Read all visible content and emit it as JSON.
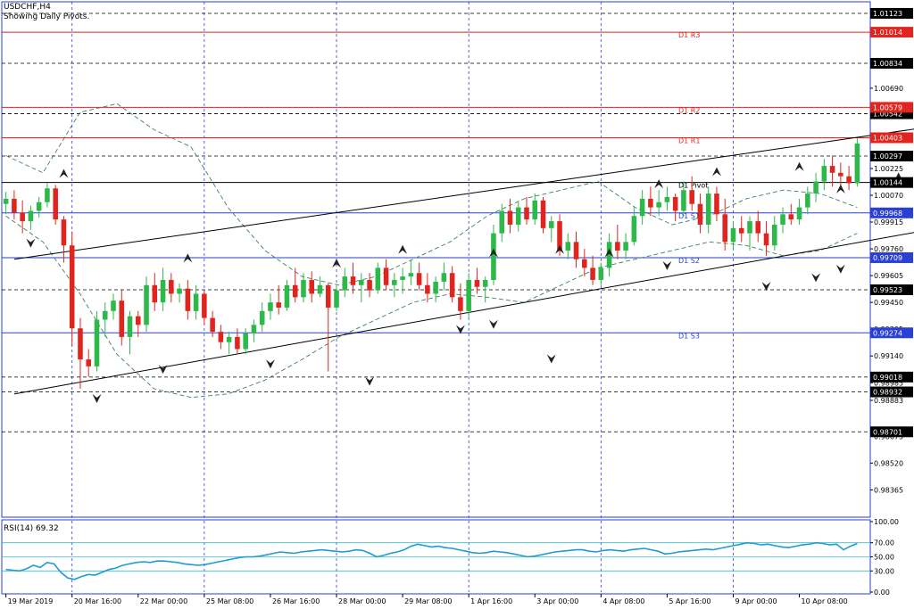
{
  "chart_header": {
    "symbol": "USDCHF,H4",
    "subtitle": "Showing Daily Pivots."
  },
  "colors": {
    "bull": "#2db84a",
    "bear": "#e0251f",
    "resistance": "#e0251f",
    "support": "#2a3fd6",
    "pivot": "#000000",
    "bands": "#3f7f5f",
    "grid": "#2a3fd6",
    "rsi": "#1e9bd7",
    "rsi_levels": "#3cc0c0"
  },
  "chart_data": {
    "type": "candlestick",
    "price_axis": {
      "range": [
        0.98207,
        1.0119
      ],
      "tick_labels": [
        "1.01123",
        "1.00834",
        "1.00690",
        "1.00542",
        "1.00394",
        "1.00297",
        "1.00225",
        "1.00070",
        "0.99915",
        "0.99760",
        "0.99605",
        "0.99450",
        "0.99295",
        "0.99140",
        "0.98985",
        "0.98883",
        "0.98675",
        "0.98520",
        "0.98365"
      ]
    },
    "time_axis": {
      "labels": [
        "19 Mar 2019",
        "20 Mar 16:00",
        "22 Mar 00:00",
        "25 Mar 08:00",
        "26 Mar 16:00",
        "28 Mar 00:00",
        "29 Mar 08:00",
        "1 Apr 16:00",
        "3 Apr 00:00",
        "4 Apr 08:00",
        "5 Apr 16:00",
        "9 Apr 00:00",
        "10 Apr 08:00"
      ]
    },
    "pivot_levels": [
      {
        "name": "D1 R3",
        "value": 1.01014,
        "label": "1.01014",
        "kind": "resistance"
      },
      {
        "name": "D1 R2",
        "value": 1.00579,
        "label": "1.00579",
        "kind": "resistance"
      },
      {
        "name": "D1 R1",
        "value": 1.00403,
        "label": "1.00403",
        "kind": "resistance"
      },
      {
        "name": "D1 Pivot",
        "value": 1.00144,
        "label": "1.00144",
        "kind": "pivot"
      },
      {
        "name": "D1 S1",
        "value": 0.99968,
        "label": "0.99968",
        "kind": "support"
      },
      {
        "name": "D1 S2",
        "value": 0.99709,
        "label": "0.99709",
        "kind": "support"
      },
      {
        "name": "D1 S3",
        "value": 0.99274,
        "label": "0.99274",
        "kind": "support"
      }
    ],
    "horizontal_levels": [
      {
        "value": 1.01123,
        "label": "1.01123"
      },
      {
        "value": 1.00834,
        "label": "1.00834"
      },
      {
        "value": 1.00542,
        "label": "1.00542"
      },
      {
        "value": 1.00297,
        "label": "1.00297"
      },
      {
        "value": 0.99523,
        "label": "0.99523"
      },
      {
        "value": 0.99018,
        "label": "0.99018"
      },
      {
        "value": 0.98932,
        "label": "0.98932"
      },
      {
        "value": 0.98701,
        "label": "0.98701"
      }
    ],
    "channel": {
      "upper": [
        [
          1,
          0.997
        ],
        [
          121,
          1.0053
        ]
      ],
      "lower": [
        [
          1,
          0.9892
        ],
        [
          121,
          0.9995
        ]
      ]
    },
    "candles": [
      [
        1.0002,
        1.0009,
        0.9996,
        1.0005
      ],
      [
        1.0005,
        1.001,
        0.9993,
        0.9997
      ],
      [
        0.9997,
        1.0004,
        0.9985,
        0.9992
      ],
      [
        0.9992,
        1.0001,
        0.9987,
        0.9998
      ],
      [
        0.9998,
        1.0006,
        0.9994,
        1.0003
      ],
      [
        1.0003,
        1.0014,
        1.0,
        1.0011
      ],
      [
        1.0011,
        1.0013,
        0.999,
        0.9993
      ],
      [
        0.9993,
        0.9995,
        0.9968,
        0.9978
      ],
      [
        0.9978,
        0.9986,
        0.992,
        0.993
      ],
      [
        0.993,
        0.9936,
        0.9895,
        0.9912
      ],
      [
        0.9912,
        0.9918,
        0.9902,
        0.9908
      ],
      [
        0.9908,
        0.994,
        0.9905,
        0.9935
      ],
      [
        0.9935,
        0.9945,
        0.9925,
        0.994
      ],
      [
        0.994,
        0.995,
        0.9935,
        0.9946
      ],
      [
        0.9946,
        0.9952,
        0.992,
        0.9925
      ],
      [
        0.9925,
        0.994,
        0.9915,
        0.9937
      ],
      [
        0.9937,
        0.994,
        0.9925,
        0.9932
      ],
      [
        0.9932,
        0.996,
        0.9928,
        0.9955
      ],
      [
        0.9955,
        0.9962,
        0.994,
        0.9945
      ],
      [
        0.9945,
        0.9965,
        0.994,
        0.9958
      ],
      [
        0.9958,
        0.9962,
        0.9945,
        0.995
      ],
      [
        0.995,
        0.9956,
        0.9945,
        0.9953
      ],
      [
        0.9953,
        0.9958,
        0.9935,
        0.994
      ],
      [
        0.994,
        0.9955,
        0.9935,
        0.995
      ],
      [
        0.995,
        0.9952,
        0.9932,
        0.9936
      ],
      [
        0.9936,
        0.994,
        0.9925,
        0.9928
      ],
      [
        0.9928,
        0.9932,
        0.9918,
        0.9922
      ],
      [
        0.9922,
        0.9928,
        0.9915,
        0.9925
      ],
      [
        0.9925,
        0.993,
        0.9915,
        0.9918
      ],
      [
        0.9918,
        0.993,
        0.9915,
        0.9927
      ],
      [
        0.9927,
        0.9935,
        0.9922,
        0.9932
      ],
      [
        0.9932,
        0.9945,
        0.9928,
        0.994
      ],
      [
        0.994,
        0.995,
        0.9935,
        0.9945
      ],
      [
        0.9945,
        0.9955,
        0.9938,
        0.9942
      ],
      [
        0.9942,
        0.9958,
        0.994,
        0.9955
      ],
      [
        0.9955,
        0.9965,
        0.9945,
        0.9948
      ],
      [
        0.9948,
        0.9962,
        0.9945,
        0.9958
      ],
      [
        0.9958,
        0.9963,
        0.9945,
        0.995
      ],
      [
        0.995,
        0.996,
        0.9948,
        0.9955
      ],
      [
        0.9955,
        0.9956,
        0.9905,
        0.9942
      ],
      [
        0.9942,
        0.9955,
        0.994,
        0.9952
      ],
      [
        0.9952,
        0.9965,
        0.9948,
        0.996
      ],
      [
        0.996,
        0.9968,
        0.995,
        0.9955
      ],
      [
        0.9955,
        0.9962,
        0.9945,
        0.9958
      ],
      [
        0.9958,
        0.9962,
        0.9948,
        0.9952
      ],
      [
        0.9952,
        0.9968,
        0.995,
        0.9965
      ],
      [
        0.9965,
        0.997,
        0.9952,
        0.9955
      ],
      [
        0.9955,
        0.9962,
        0.9948,
        0.9958
      ],
      [
        0.9958,
        0.9965,
        0.995,
        0.996
      ],
      [
        0.996,
        0.997,
        0.9955,
        0.9962
      ],
      [
        0.9962,
        0.9968,
        0.9952,
        0.9955
      ],
      [
        0.9955,
        0.9962,
        0.9945,
        0.995
      ],
      [
        0.995,
        0.996,
        0.9945,
        0.9957
      ],
      [
        0.9957,
        0.9968,
        0.9952,
        0.9962
      ],
      [
        0.9962,
        0.9966,
        0.9945,
        0.9948
      ],
      [
        0.9948,
        0.9956,
        0.9935,
        0.994
      ],
      [
        0.994,
        0.9962,
        0.9935,
        0.9958
      ],
      [
        0.9958,
        0.9965,
        0.995,
        0.9954
      ],
      [
        0.9954,
        0.996,
        0.9945,
        0.9958
      ],
      [
        0.9958,
        0.999,
        0.9955,
        0.9985
      ],
      [
        0.9985,
        1.0002,
        0.998,
        0.9998
      ],
      [
        0.9998,
        1.0005,
        0.9985,
        0.999
      ],
      [
        0.999,
        1.0003,
        0.9986,
        1.0
      ],
      [
        1.0,
        1.0006,
        0.999,
        0.9993
      ],
      [
        0.9993,
        1.0008,
        0.999,
        1.0004
      ],
      [
        1.0004,
        1.0006,
        0.9985,
        0.9988
      ],
      [
        0.9988,
        0.9995,
        0.998,
        0.9992
      ],
      [
        0.9992,
        0.9996,
        0.9972,
        0.9975
      ],
      [
        0.9975,
        0.9985,
        0.997,
        0.998
      ],
      [
        0.998,
        0.9986,
        0.9965,
        0.997
      ],
      [
        0.997,
        0.9976,
        0.996,
        0.9965
      ],
      [
        0.9965,
        0.9972,
        0.9955,
        0.9958
      ],
      [
        0.9958,
        0.9968,
        0.9955,
        0.9965
      ],
      [
        0.9965,
        0.9985,
        0.996,
        0.998
      ],
      [
        0.998,
        0.999,
        0.997,
        0.9975
      ],
      [
        0.9975,
        0.9985,
        0.997,
        0.998
      ],
      [
        0.998,
        1.0,
        0.9978,
        0.9995
      ],
      [
        0.9995,
        1.001,
        0.999,
        1.0005
      ],
      [
        1.0005,
        1.0012,
        0.9995,
        1.0
      ],
      [
        1.0,
        1.001,
        0.9995,
        1.0003
      ],
      [
        1.0003,
        1.0012,
        0.9998,
        1.0006
      ],
      [
        1.0006,
        1.0008,
        0.9992,
        0.9998
      ],
      [
        0.9998,
        1.0015,
        0.9995,
        1.001
      ],
      [
        1.001,
        1.0018,
        0.9998,
        1.0002
      ],
      [
        1.0002,
        1.0008,
        0.9985,
        0.999
      ],
      [
        0.999,
        1.0012,
        0.9985,
        1.0008
      ],
      [
        1.0008,
        1.0012,
        0.9992,
        0.9996
      ],
      [
        0.9996,
        1.0005,
        0.9975,
        0.998
      ],
      [
        0.998,
        0.9992,
        0.9975,
        0.9988
      ],
      [
        0.9988,
        0.9995,
        0.998,
        0.9985
      ],
      [
        0.9985,
        0.9995,
        0.9975,
        0.9992
      ],
      [
        0.9992,
        0.9998,
        0.998,
        0.9985
      ],
      [
        0.9985,
        0.9992,
        0.9972,
        0.9978
      ],
      [
        0.9978,
        0.9995,
        0.9975,
        0.999
      ],
      [
        0.999,
        1.0,
        0.9985,
        0.9996
      ],
      [
        0.9996,
        1.0002,
        0.999,
        0.9993
      ],
      [
        0.9993,
        1.0005,
        0.999,
        1.0
      ],
      [
        1.0,
        1.0012,
        0.9996,
        1.0008
      ],
      [
        1.0008,
        1.002,
        1.0003,
        1.0015
      ],
      [
        1.0015,
        1.0028,
        1.001,
        1.0024
      ],
      [
        1.0024,
        1.003,
        1.0012,
        1.002
      ],
      [
        1.002,
        1.0026,
        1.0012,
        1.0018
      ],
      [
        1.0018,
        1.0024,
        1.001,
        1.0014
      ],
      [
        1.0014,
        1.004,
        1.0012,
        1.0037
      ]
    ],
    "bands_upper": [
      1.003,
      1.002,
      1.0055,
      1.006,
      1.0045,
      1.0035,
      1.0,
      0.9975,
      0.996,
      0.9955,
      0.996,
      0.997,
      0.998,
      0.9995,
      1.0005,
      1.001,
      1.0015,
      1.0,
      0.999,
      0.9995,
      1.0005,
      1.001,
      1.0008,
      1.0
    ],
    "bands_lower": [
      0.9995,
      0.998,
      0.995,
      0.9915,
      0.9895,
      0.989,
      0.9892,
      0.99,
      0.9912,
      0.9925,
      0.9935,
      0.9945,
      0.995,
      0.9948,
      0.9945,
      0.9955,
      0.9965,
      0.997,
      0.9975,
      0.998,
      0.9978,
      0.9972,
      0.9975,
      0.9985
    ],
    "fractals_up": [
      [
        7,
        1.0014
      ],
      [
        22,
        0.9965
      ],
      [
        40,
        0.9962
      ],
      [
        48,
        0.997
      ],
      [
        59,
        0.9968
      ],
      [
        67,
        0.997
      ],
      [
        73,
        0.9968
      ],
      [
        79,
        1.0008
      ],
      [
        86,
        1.0015
      ],
      [
        96,
        1.0018
      ],
      [
        101,
        1.0005
      ],
      [
        108,
        1.0012
      ],
      [
        116,
        1.002
      ],
      [
        119,
        1.004
      ]
    ],
    "fractals_down": [
      [
        3,
        0.9985
      ],
      [
        11,
        0.9895
      ],
      [
        19,
        0.9912
      ],
      [
        32,
        0.9915
      ],
      [
        44,
        0.9905
      ],
      [
        55,
        0.9935
      ],
      [
        59,
        0.9938
      ],
      [
        66,
        0.9918
      ],
      [
        80,
        0.9972
      ],
      [
        92,
        0.996
      ],
      [
        98,
        0.9965
      ],
      [
        101,
        0.997
      ],
      [
        112,
        0.9965
      ],
      [
        118,
        0.9985
      ]
    ],
    "rsi": {
      "label": "RSI(14) 69.32",
      "levels": [
        70,
        50,
        30
      ],
      "tick_labels": [
        "100.00",
        "70.00",
        "50.00",
        "30.00",
        "0.00"
      ],
      "values": [
        32,
        31,
        30,
        33,
        38,
        35,
        42,
        40,
        28,
        20,
        18,
        22,
        25,
        24,
        28,
        32,
        34,
        38,
        40,
        42,
        43,
        42,
        44,
        44,
        43,
        42,
        40,
        39,
        38,
        39,
        41,
        43,
        45,
        47,
        49,
        50,
        50,
        51,
        53,
        55,
        57,
        56,
        55,
        57,
        58,
        59,
        60,
        59,
        58,
        57,
        58,
        60,
        59,
        55,
        50,
        52,
        55,
        57,
        60,
        65,
        68,
        66,
        64,
        65,
        63,
        62,
        60,
        58,
        56,
        55,
        56,
        58,
        57,
        56,
        54,
        52,
        50,
        51,
        53,
        55,
        57,
        58,
        59,
        60,
        60,
        58,
        57,
        59,
        60,
        59,
        58,
        60,
        61,
        62,
        60,
        58,
        54,
        55,
        57,
        58,
        59,
        60,
        61,
        60,
        62,
        64,
        66,
        68,
        70,
        69,
        67,
        68,
        66,
        64,
        63,
        65,
        67,
        68,
        70,
        69,
        67,
        68,
        60,
        65,
        69
      ]
    }
  }
}
